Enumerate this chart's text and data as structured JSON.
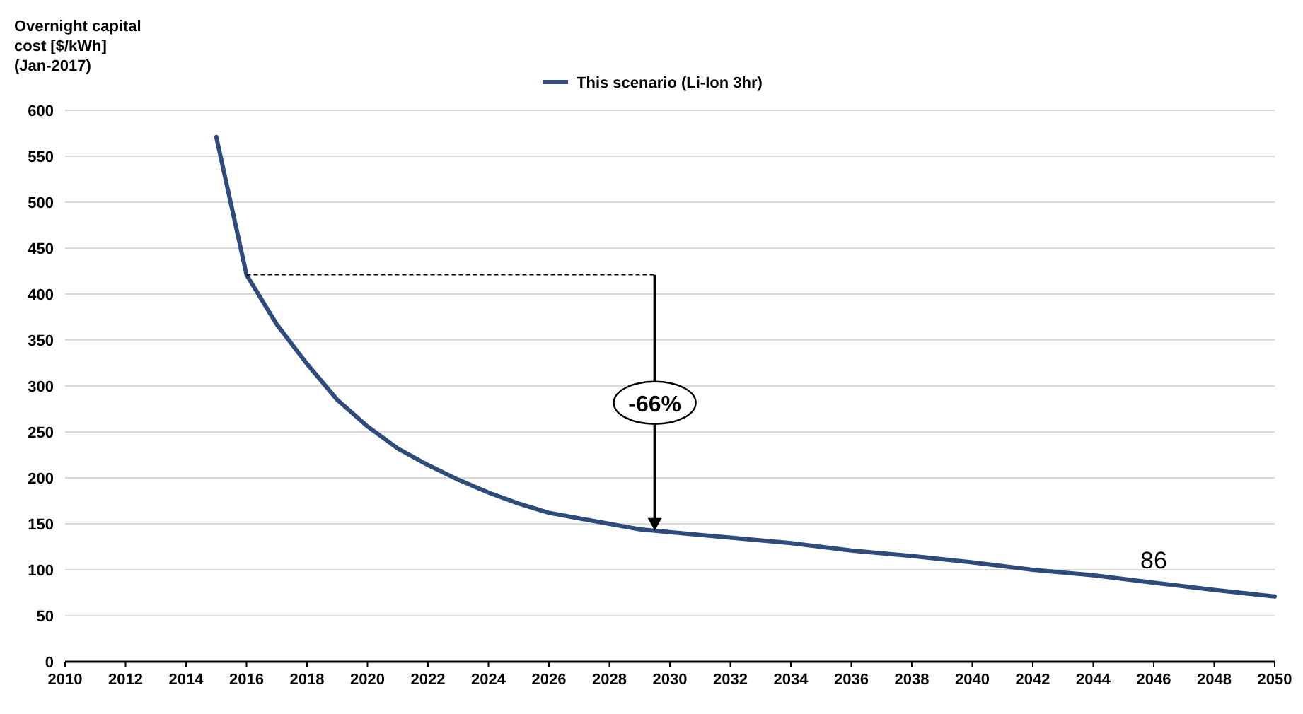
{
  "chart_data": {
    "type": "line",
    "ylabel": "Overnight capital cost [$/kWh] (Jan-2017)",
    "series": [
      {
        "name": "This scenario (Li-Ion 3hr)",
        "color": "#2f4b7c",
        "x": [
          2015,
          2016,
          2017,
          2018,
          2019,
          2020,
          2021,
          2022,
          2023,
          2024,
          2025,
          2026,
          2027,
          2028,
          2029,
          2030,
          2032,
          2034,
          2036,
          2038,
          2040,
          2042,
          2044,
          2046,
          2048,
          2050
        ],
        "values": [
          571,
          421,
          367,
          324,
          285,
          256,
          232,
          214,
          198,
          184,
          172,
          162,
          156,
          150,
          144,
          141,
          135,
          129,
          121,
          115,
          108,
          100,
          94,
          86,
          78,
          71
        ]
      }
    ],
    "xlim": [
      2010,
      2050
    ],
    "xticks": [
      2010,
      2012,
      2014,
      2016,
      2018,
      2020,
      2022,
      2024,
      2026,
      2028,
      2030,
      2032,
      2034,
      2036,
      2038,
      2040,
      2042,
      2044,
      2046,
      2048,
      2050
    ],
    "ylim": [
      0,
      600
    ],
    "yticks": [
      0,
      50,
      100,
      150,
      200,
      250,
      300,
      350,
      400,
      450,
      500,
      550,
      600
    ],
    "grid": "y",
    "legend": "top",
    "marker": "none",
    "line_style": "solid",
    "annotations": [
      "-66%",
      {
        "text": "86",
        "x": 2046,
        "y": 86
      }
    ]
  }
}
